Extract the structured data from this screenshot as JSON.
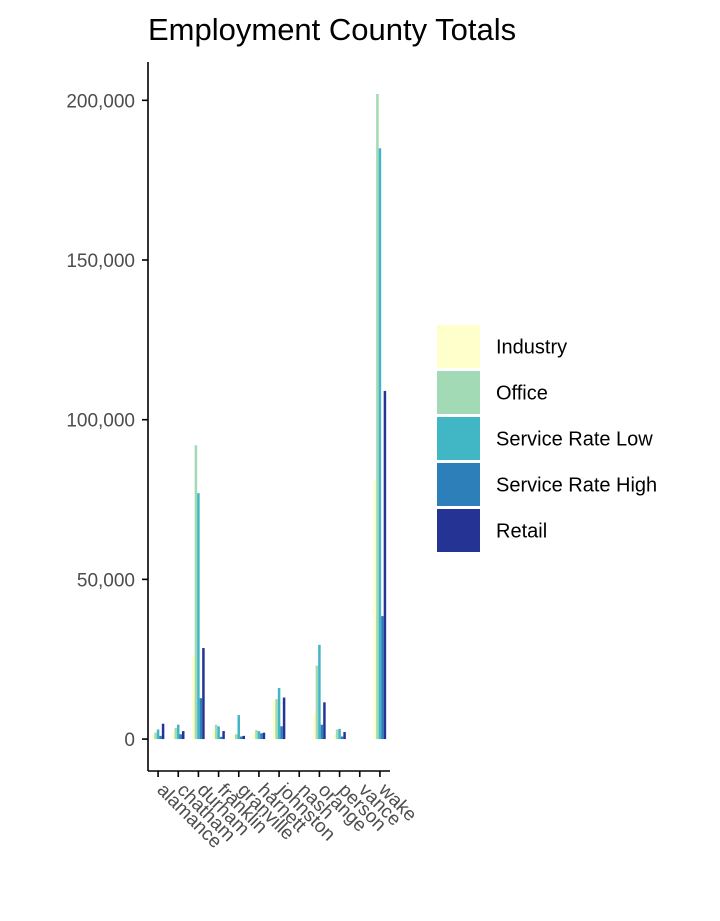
{
  "chart_data": {
    "type": "bar",
    "title": "Employment County Totals",
    "xlabel": "",
    "ylabel": "",
    "ylim": [
      -10000,
      212000
    ],
    "y_ticks": [
      0,
      50000,
      100000,
      150000,
      200000
    ],
    "y_tick_labels": [
      "0",
      "50,000",
      "100,000",
      "150,000",
      "200,000"
    ],
    "categories": [
      "alamance",
      "chatham",
      "durham",
      "franklin",
      "granville",
      "harnett",
      "johnston",
      "nash",
      "orange",
      "person",
      "vance",
      "wake"
    ],
    "series": [
      {
        "name": "Industry",
        "color": "#ffffcc",
        "values": [
          1500,
          2000,
          26000,
          3000,
          1500,
          2000,
          12000,
          0,
          8000,
          1500,
          0,
          81000
        ]
      },
      {
        "name": "Office",
        "color": "#a1dab4",
        "values": [
          2000,
          3500,
          92000,
          4500,
          1500,
          2800,
          12500,
          0,
          23000,
          3000,
          0,
          202000
        ]
      },
      {
        "name": "Service Rate Low",
        "color": "#41b6c4",
        "values": [
          3000,
          4500,
          77000,
          4000,
          7500,
          2500,
          16000,
          0,
          29500,
          3200,
          0,
          185000
        ]
      },
      {
        "name": "Service Rate High",
        "color": "#2c7fb8",
        "values": [
          1000,
          1500,
          12800,
          700,
          800,
          1800,
          4000,
          0,
          4500,
          800,
          0,
          38500
        ]
      },
      {
        "name": "Retail",
        "color": "#253494",
        "values": [
          4800,
          2500,
          28500,
          2500,
          1000,
          2000,
          13000,
          0,
          11500,
          2200,
          0,
          109000
        ]
      }
    ],
    "legend_position": "right",
    "grid": false
  }
}
